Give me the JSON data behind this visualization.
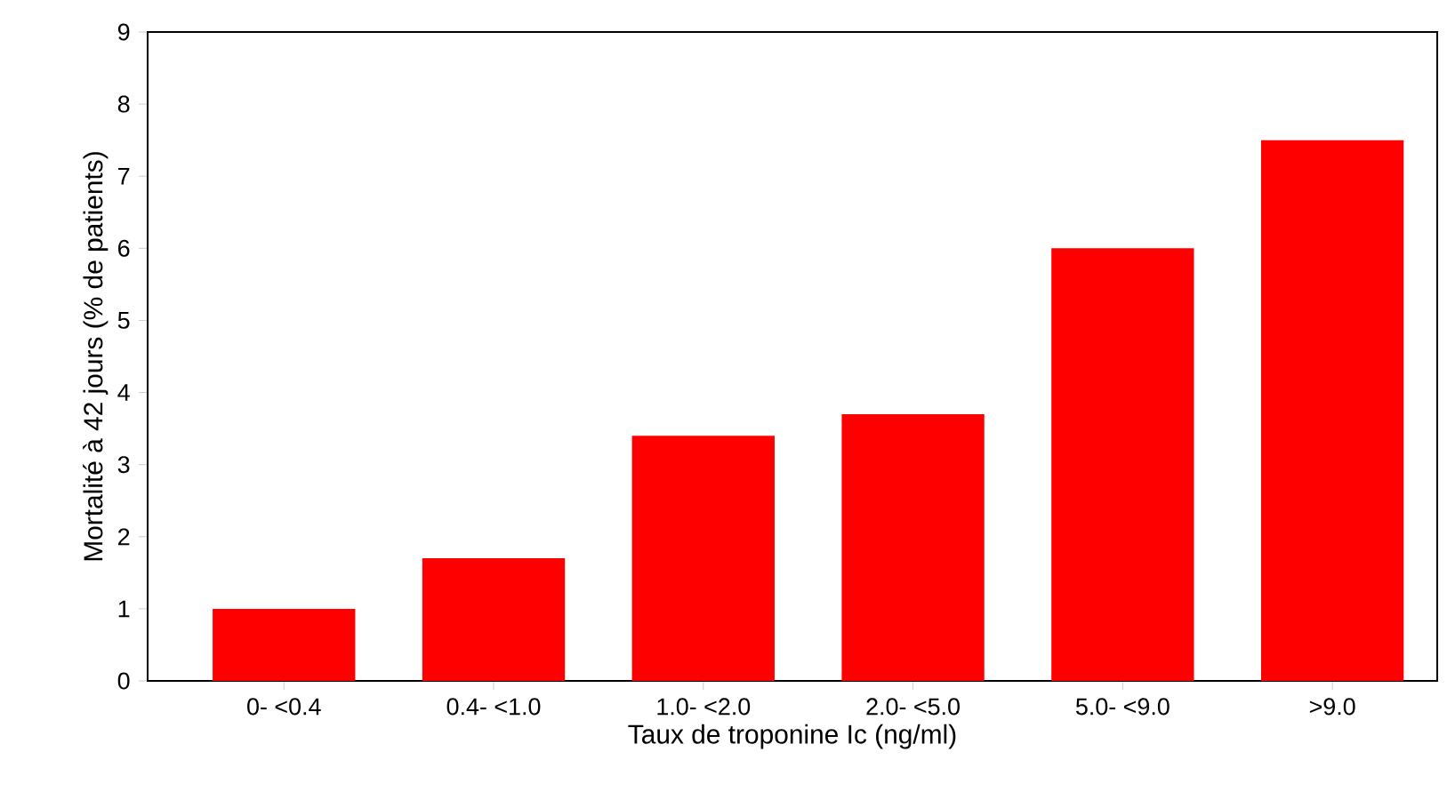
{
  "chart_data": {
    "type": "bar",
    "xlabel": "Taux de troponine Ic (ng/ml)",
    "ylabel": "Mortalité à 42 jours (% de patients)",
    "categories": [
      "0- <0.4",
      "0.4- <1.0",
      "1.0- <2.0",
      "2.0- <5.0",
      "5.0- <9.0",
      ">9.0"
    ],
    "values": [
      1.0,
      1.7,
      3.4,
      3.7,
      6.0,
      7.5
    ],
    "color": "#ff0000",
    "ylim": [
      0,
      9
    ],
    "yticks": [
      0,
      1,
      2,
      3,
      4,
      5,
      6,
      7,
      8,
      9
    ],
    "grid": false
  }
}
